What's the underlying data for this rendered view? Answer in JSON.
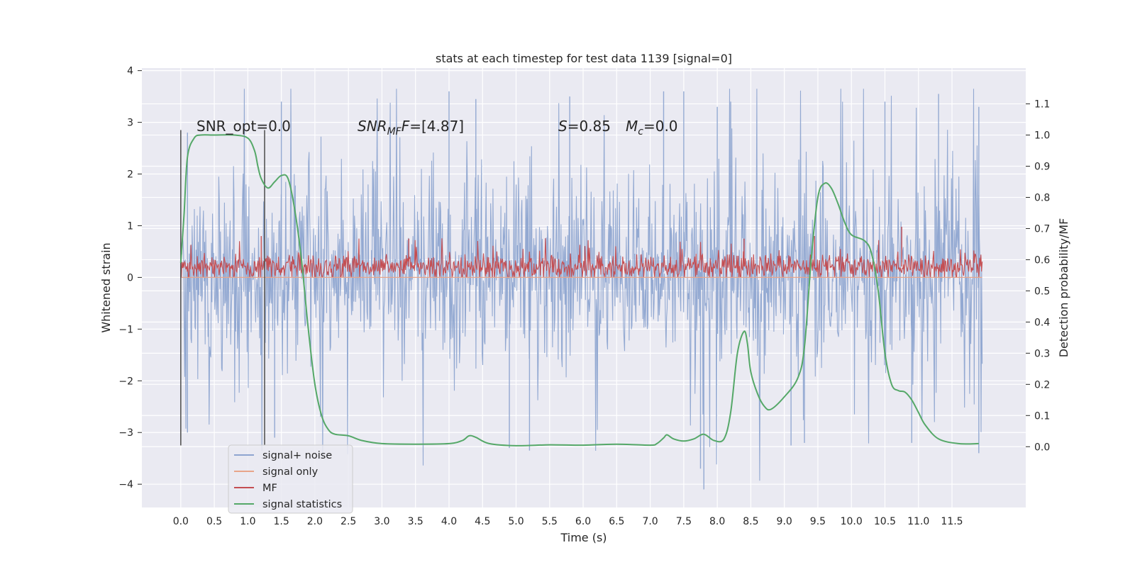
{
  "chart_data": {
    "type": "line",
    "title": "stats at each timestep for test data 1139 [signal=0]",
    "xlabel": "Time (s)",
    "ylabel_left": "Whitened strain",
    "ylabel_right": "Detection probability/MF",
    "xlim": [
      -0.58,
      12.6
    ],
    "ylim_left": [
      -4.45,
      4.05
    ],
    "ylim_right": [
      -0.195,
      1.215
    ],
    "x_ticks": [
      "0.0",
      "0.5",
      "1.0",
      "1.5",
      "2.0",
      "2.5",
      "3.0",
      "3.5",
      "4.0",
      "4.5",
      "5.0",
      "5.5",
      "6.0",
      "6.5",
      "7.0",
      "7.5",
      "8.0",
      "8.5",
      "9.0",
      "9.5",
      "10.0",
      "10.5",
      "11.0",
      "11.5"
    ],
    "y_ticks_left": [
      "4",
      "3",
      "2",
      "1",
      "0",
      "−1",
      "−2",
      "−3",
      "−4"
    ],
    "y_ticks_right": [
      "0.0",
      "0.1",
      "0.2",
      "0.3",
      "0.4",
      "0.5",
      "0.6",
      "0.7",
      "0.8",
      "0.9",
      "1.0",
      "1.1"
    ],
    "annotations": {
      "snr_opt": "SNR_opt=0.0",
      "snr_mf_sym": "SNR",
      "snr_mf_sub": "MF",
      "snr_mf_val": "=[4.87]",
      "s_sym": "S",
      "s_val": "=0.85",
      "mc_sym": "M",
      "mc_sub": "c",
      "mc_val": "=0.0"
    },
    "vlines_x": [
      0.0,
      1.25
    ],
    "legend": {
      "placement": "lower-left",
      "entries": [
        {
          "label": "signal+ noise",
          "color": "#8ea5d0"
        },
        {
          "label": "signal only",
          "color": "#e8a58a"
        },
        {
          "label": "MF",
          "color": "#c44e52"
        },
        {
          "label": "signal statistics",
          "color": "#55a868"
        }
      ]
    },
    "series": [
      {
        "name": "signal+ noise",
        "axis": "left",
        "style": "dense noise band",
        "x_range": [
          0.0,
          11.95
        ],
        "range": [
          -4.1,
          3.65
        ],
        "typical_band": [
          -1.3,
          1.5
        ],
        "spike_highs": [
          [
            0.1,
            2.8
          ],
          [
            1.5,
            3.4
          ],
          [
            4.0,
            3.6
          ],
          [
            4.4,
            3.45
          ],
          [
            5.8,
            3.5
          ],
          [
            7.2,
            3.6
          ],
          [
            7.5,
            3.6
          ],
          [
            8.0,
            3.3
          ],
          [
            8.2,
            3.4
          ],
          [
            10.5,
            3.4
          ],
          [
            11.3,
            3.55
          ],
          [
            11.9,
            3.3
          ]
        ],
        "spike_lows": [
          [
            0.1,
            -3.0
          ],
          [
            1.4,
            -3.1
          ],
          [
            4.9,
            -3.3
          ],
          [
            5.2,
            -3.35
          ],
          [
            7.8,
            -4.1
          ],
          [
            7.75,
            -3.7
          ],
          [
            9.1,
            -3.25
          ],
          [
            9.3,
            -3.2
          ],
          [
            10.9,
            -3.2
          ],
          [
            11.9,
            -3.4
          ]
        ]
      },
      {
        "name": "signal only",
        "axis": "left",
        "x": [
          0.0,
          11.95
        ],
        "values": [
          0.0,
          0.0
        ]
      },
      {
        "name": "MF",
        "axis": "left",
        "style": "dense noisy band",
        "x_range": [
          0.0,
          11.95
        ],
        "range": [
          0.0,
          0.98
        ],
        "typical_band": [
          0.02,
          0.4
        ],
        "spike_highs": [
          [
            1.2,
            0.8
          ],
          [
            3.4,
            0.75
          ],
          [
            8.4,
            0.75
          ],
          [
            9.45,
            0.8
          ],
          [
            10.75,
            0.98
          ]
        ]
      },
      {
        "name": "signal statistics",
        "axis": "right",
        "x": [
          0.0,
          0.05,
          0.1,
          0.2,
          0.3,
          0.5,
          0.8,
          1.0,
          1.1,
          1.15,
          1.2,
          1.3,
          1.4,
          1.5,
          1.6,
          1.7,
          1.8,
          1.9,
          2.0,
          2.1,
          2.2,
          2.3,
          2.5,
          2.7,
          3.0,
          3.5,
          4.0,
          4.2,
          4.3,
          4.4,
          4.6,
          5.0,
          5.5,
          6.0,
          6.5,
          7.0,
          7.1,
          7.2,
          7.25,
          7.35,
          7.5,
          7.65,
          7.8,
          7.95,
          8.1,
          8.2,
          8.3,
          8.4,
          8.45,
          8.5,
          8.6,
          8.7,
          8.8,
          9.0,
          9.2,
          9.3,
          9.4,
          9.5,
          9.6,
          9.7,
          9.8,
          9.9,
          10.0,
          10.2,
          10.3,
          10.4,
          10.5,
          10.6,
          10.7,
          10.8,
          10.9,
          11.0,
          11.1,
          11.3,
          11.6,
          11.9
        ],
        "values": [
          0.59,
          0.75,
          0.93,
          0.99,
          1.0,
          1.0,
          1.0,
          0.99,
          0.95,
          0.9,
          0.86,
          0.83,
          0.85,
          0.87,
          0.86,
          0.76,
          0.6,
          0.38,
          0.2,
          0.1,
          0.055,
          0.04,
          0.035,
          0.02,
          0.01,
          0.008,
          0.01,
          0.02,
          0.035,
          0.03,
          0.01,
          0.003,
          0.006,
          0.005,
          0.008,
          0.005,
          0.01,
          0.028,
          0.038,
          0.025,
          0.018,
          0.025,
          0.04,
          0.02,
          0.025,
          0.11,
          0.3,
          0.37,
          0.33,
          0.24,
          0.17,
          0.13,
          0.12,
          0.16,
          0.22,
          0.32,
          0.6,
          0.8,
          0.845,
          0.83,
          0.78,
          0.72,
          0.68,
          0.66,
          0.62,
          0.5,
          0.3,
          0.2,
          0.18,
          0.175,
          0.15,
          0.11,
          0.07,
          0.025,
          0.01,
          0.01
        ]
      }
    ],
    "grid": true,
    "background": "#eaeaf2"
  }
}
